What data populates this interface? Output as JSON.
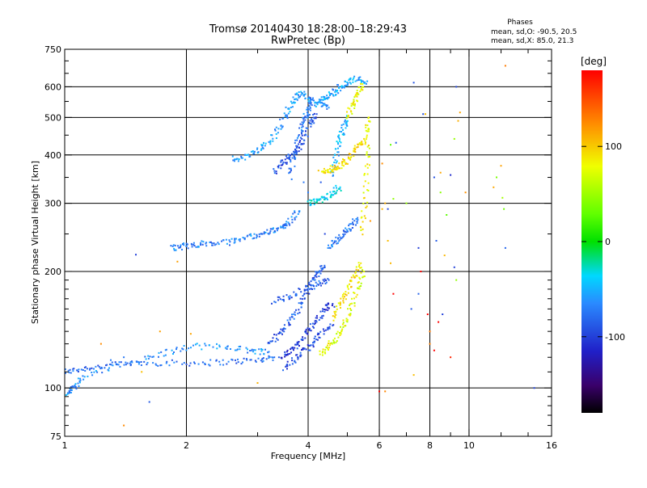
{
  "chart_data": {
    "type": "scatter",
    "title": "Tromsø 20140430 18:28:00–18:29:43",
    "subtitle": "RwPretec (Bp)",
    "xlabel": "Frequency [MHz]",
    "ylabel": "Stationary phase Virtual Height [km]",
    "x_scale": "log",
    "y_scale": "log",
    "xlim": [
      1,
      16
    ],
    "ylim": [
      75,
      750
    ],
    "x_ticks": [
      1,
      2,
      4,
      6,
      8,
      10,
      16
    ],
    "x_tick_labels": [
      "1",
      "2",
      "4",
      "6",
      "8",
      "10",
      "16"
    ],
    "x_minor_ticks": [
      3,
      5,
      7,
      9,
      12,
      14
    ],
    "y_ticks": [
      75,
      100,
      200,
      300,
      400,
      500,
      600,
      750
    ],
    "y_tick_labels": [
      "75",
      "100",
      "200",
      "300",
      "400",
      "500",
      "600",
      "750"
    ],
    "y_minor_ticks": [
      80,
      85,
      90,
      95,
      110,
      120,
      130,
      140,
      150,
      160,
      170,
      180,
      190,
      250,
      350,
      450,
      550,
      650,
      700
    ],
    "grid_x": [
      2,
      4,
      6,
      8,
      10
    ],
    "grid_y": [
      100,
      200,
      300,
      400,
      500,
      600
    ],
    "grid": true,
    "legend": {
      "title": "Phases",
      "lines": [
        "mean, sd,O: -90.5, 20.5",
        "mean, sd,X:  85.0, 21.3"
      ],
      "placement": "top-right"
    },
    "colorbar": {
      "label": "[deg]",
      "min": -180,
      "max": 180,
      "ticks": [
        100,
        0,
        -100
      ],
      "tick_labels": [
        "100",
        "0",
        "-100"
      ],
      "colormap": "rainbow"
    },
    "series": [
      {
        "traces": [
          {
            "phase": -85,
            "pts": [
              [
                1.0,
                110
              ],
              [
                1.1,
                112
              ],
              [
                1.25,
                114
              ],
              [
                1.5,
                116
              ],
              [
                1.8,
                116
              ],
              [
                2.2,
                116
              ],
              [
                2.6,
                117
              ],
              [
                3.0,
                118
              ],
              [
                3.3,
                120
              ]
            ]
          },
          {
            "phase": -70,
            "pts": [
              [
                1.02,
                97
              ],
              [
                1.05,
                100
              ],
              [
                1.1,
                106
              ],
              [
                1.3,
                113
              ],
              [
                1.55,
                118
              ],
              [
                1.8,
                124
              ],
              [
                2.1,
                128
              ],
              [
                2.5,
                128
              ],
              [
                2.9,
                125
              ],
              [
                3.2,
                124
              ]
            ]
          },
          {
            "phase": -90,
            "pts": [
              [
                3.2,
                130
              ],
              [
                3.4,
                138
              ],
              [
                3.6,
                148
              ],
              [
                3.8,
                160
              ],
              [
                3.95,
                175
              ],
              [
                4.1,
                190
              ],
              [
                4.25,
                200
              ],
              [
                4.4,
                205
              ]
            ]
          },
          {
            "phase": -105,
            "pts": [
              [
                3.4,
                120
              ],
              [
                3.6,
                124
              ],
              [
                3.8,
                130
              ],
              [
                4.0,
                140
              ],
              [
                4.2,
                150
              ],
              [
                4.4,
                160
              ],
              [
                4.6,
                165
              ]
            ]
          },
          {
            "phase": -100,
            "pts": [
              [
                3.5,
                113
              ],
              [
                3.7,
                118
              ],
              [
                3.9,
                124
              ],
              [
                4.1,
                130
              ],
              [
                4.3,
                138
              ],
              [
                4.6,
                145
              ]
            ]
          },
          {
            "phase": -90,
            "pts": [
              [
                3.3,
                168
              ],
              [
                3.6,
                172
              ],
              [
                3.9,
                180
              ],
              [
                4.2,
                185
              ],
              [
                4.5,
                190
              ]
            ]
          },
          {
            "phase": -75,
            "pts": [
              [
                1.85,
                230
              ],
              [
                1.95,
                232
              ],
              [
                2.1,
                235
              ],
              [
                2.3,
                236
              ],
              [
                2.55,
                238
              ],
              [
                2.8,
                245
              ],
              [
                3.05,
                250
              ],
              [
                3.3,
                255
              ],
              [
                3.45,
                260
              ],
              [
                3.6,
                270
              ],
              [
                3.8,
                285
              ]
            ]
          },
          {
            "phase": -65,
            "pts": [
              [
                2.6,
                390
              ],
              [
                2.8,
                395
              ],
              [
                3.0,
                410
              ],
              [
                3.2,
                430
              ],
              [
                3.4,
                470
              ],
              [
                3.55,
                520
              ],
              [
                3.7,
                555
              ],
              [
                3.85,
                575
              ],
              [
                4.0,
                560
              ],
              [
                4.2,
                540
              ],
              [
                4.5,
                530
              ]
            ]
          },
          {
            "phase": -80,
            "pts": [
              [
                3.6,
                350
              ],
              [
                3.7,
                400
              ],
              [
                3.8,
                450
              ],
              [
                3.9,
                490
              ],
              [
                4.0,
                520
              ],
              [
                4.1,
                555
              ]
            ]
          },
          {
            "phase": -95,
            "pts": [
              [
                3.3,
                360
              ],
              [
                3.45,
                380
              ],
              [
                3.6,
                395
              ],
              [
                3.75,
                410
              ],
              [
                3.9,
                440
              ],
              [
                4.05,
                480
              ],
              [
                4.2,
                510
              ]
            ]
          },
          {
            "phase": -60,
            "pts": [
              [
                4.2,
                550
              ],
              [
                4.4,
                560
              ],
              [
                4.6,
                575
              ],
              [
                4.8,
                600
              ],
              [
                5.0,
                615
              ],
              [
                5.3,
                630
              ],
              [
                5.6,
                620
              ]
            ]
          },
          {
            "phase": -55,
            "pts": [
              [
                4.6,
                350
              ],
              [
                4.7,
                400
              ],
              [
                4.8,
                440
              ],
              [
                4.9,
                470
              ],
              [
                5.0,
                500
              ]
            ]
          },
          {
            "phase": 75,
            "pts": [
              [
                4.3,
                123
              ],
              [
                4.5,
                128
              ],
              [
                4.7,
                135
              ],
              [
                4.9,
                145
              ],
              [
                5.1,
                160
              ],
              [
                5.3,
                180
              ],
              [
                5.5,
                200
              ]
            ]
          },
          {
            "phase": 90,
            "pts": [
              [
                4.6,
                150
              ],
              [
                4.8,
                165
              ],
              [
                5.0,
                180
              ],
              [
                5.2,
                195
              ],
              [
                5.4,
                210
              ]
            ]
          },
          {
            "phase": 95,
            "pts": [
              [
                4.3,
                360
              ],
              [
                4.5,
                365
              ],
              [
                4.7,
                372
              ],
              [
                4.9,
                380
              ],
              [
                5.1,
                400
              ],
              [
                5.3,
                420
              ],
              [
                5.5,
                440
              ]
            ]
          },
          {
            "phase": 80,
            "pts": [
              [
                5.0,
                500
              ],
              [
                5.15,
                540
              ],
              [
                5.3,
                575
              ],
              [
                5.45,
                610
              ]
            ]
          },
          {
            "phase": 85,
            "pts": [
              [
                5.4,
                250
              ],
              [
                5.55,
                300
              ],
              [
                5.6,
                380
              ],
              [
                5.62,
                450
              ],
              [
                5.65,
                500
              ]
            ]
          },
          {
            "phase": -80,
            "pts": [
              [
                4.5,
                230
              ],
              [
                4.7,
                240
              ],
              [
                4.9,
                250
              ],
              [
                5.1,
                260
              ],
              [
                5.3,
                275
              ]
            ]
          },
          {
            "phase": -40,
            "pts": [
              [
                4.0,
                300
              ],
              [
                4.2,
                305
              ],
              [
                4.4,
                310
              ],
              [
                4.6,
                320
              ],
              [
                4.8,
                330
              ]
            ]
          }
        ],
        "scatter": [
          {
            "phase": -90,
            "pts": [
              [
                1.5,
                221
              ],
              [
                1.62,
                92
              ],
              [
                1.3,
                118
              ],
              [
                1.4,
                120
              ],
              [
                2.3,
                238
              ],
              [
                2.9,
                125
              ],
              [
                4.3,
                340
              ],
              [
                4.4,
                250
              ],
              [
                3.9,
                340
              ],
              [
                4.0,
                320
              ]
            ]
          },
          {
            "phase": 120,
            "pts": [
              [
                1.23,
                130
              ],
              [
                1.4,
                80
              ],
              [
                1.55,
                110
              ],
              [
                1.72,
                140
              ],
              [
                1.9,
                212
              ],
              [
                2.05,
                138
              ],
              [
                3.0,
                103
              ],
              [
                6.2,
                300
              ],
              [
                6.1,
                290
              ],
              [
                6.3,
                240
              ],
              [
                6.4,
                210
              ],
              [
                6.2,
                98
              ],
              [
                7.3,
                108
              ],
              [
                8.0,
                130
              ],
              [
                8.0,
                140
              ],
              [
                8.5,
                360
              ],
              [
                9.4,
                490
              ],
              [
                9.5,
                515
              ],
              [
                9.8,
                320
              ],
              [
                11.5,
                330
              ],
              [
                12.0,
                375
              ],
              [
                12.3,
                680
              ],
              [
                7.8,
                510
              ],
              [
                8.7,
                220
              ],
              [
                5.7,
                270
              ],
              [
                6.1,
                380
              ]
            ]
          },
          {
            "phase": 180,
            "pts": [
              [
                6.0,
                98
              ],
              [
                6.5,
                175
              ],
              [
                7.6,
                200
              ],
              [
                7.9,
                155
              ],
              [
                8.2,
                125
              ],
              [
                8.4,
                148
              ],
              [
                9.0,
                120
              ]
            ]
          },
          {
            "phase": -100,
            "pts": [
              [
                6.6,
                430
              ],
              [
                6.3,
                290
              ],
              [
                7.3,
                615
              ],
              [
                7.5,
                175
              ],
              [
                7.2,
                160
              ],
              [
                7.5,
                230
              ],
              [
                7.7,
                510
              ],
              [
                8.3,
                240
              ],
              [
                9.0,
                355
              ],
              [
                9.3,
                600
              ],
              [
                12.3,
                230
              ],
              [
                14.5,
                100
              ],
              [
                8.2,
                350
              ],
              [
                9.2,
                205
              ],
              [
                8.6,
                155
              ]
            ]
          },
          {
            "phase": 40,
            "pts": [
              [
                6.5,
                308
              ],
              [
                7.0,
                300
              ],
              [
                8.8,
                280
              ],
              [
                9.3,
                190
              ],
              [
                11.7,
                350
              ],
              [
                12.1,
                310
              ],
              [
                12.2,
                290
              ],
              [
                6.4,
                425
              ],
              [
                8.5,
                320
              ],
              [
                9.2,
                440
              ]
            ]
          }
        ]
      }
    ]
  }
}
